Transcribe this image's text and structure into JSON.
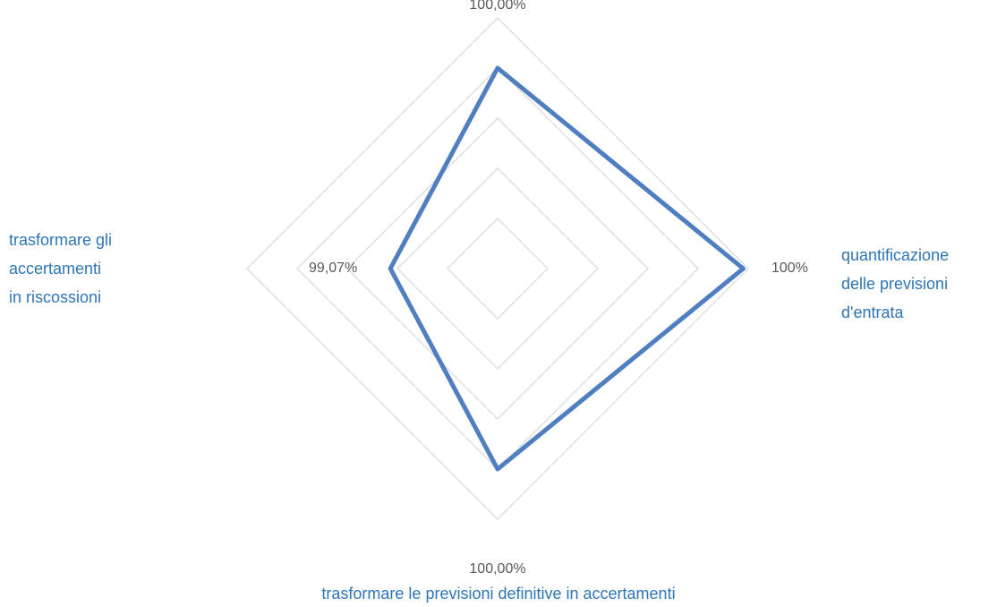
{
  "chart_data": {
    "type": "radar",
    "categories": [
      null,
      "quantificazione\ndelle previsioni\nd'entrata",
      "trasformare le previsioni definitive in accertamenti",
      "trasformare gli\naccertamenti\nin riscossioni"
    ],
    "series": [
      {
        "color": "#4f7fc0",
        "values": [
          100.0,
          100.45,
          100.0,
          99.07
        ],
        "value_labels": [
          "100,00%",
          "100%",
          "100,00%",
          "99,07%"
        ]
      }
    ],
    "ylim": [
      98.0,
      100.5
    ],
    "yticks": [
      98.0,
      98.5,
      99.0,
      99.5,
      100.0,
      100.5
    ],
    "grid": true
  }
}
